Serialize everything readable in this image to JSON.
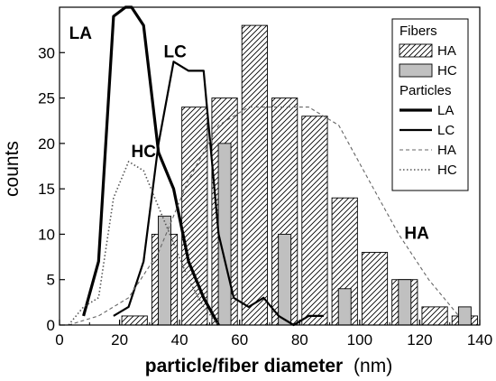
{
  "chart_data": {
    "type": "bar",
    "xlabel": "particle/fiber diameter",
    "xlabel_unit": "(nm)",
    "ylabel": "counts",
    "xlim": [
      0,
      140
    ],
    "ylim": [
      0,
      35
    ],
    "xticks": [
      0,
      20,
      40,
      60,
      80,
      100,
      120,
      140
    ],
    "yticks": [
      0,
      5,
      10,
      15,
      20,
      25,
      30
    ],
    "grid": false,
    "legend_position": "top-right",
    "legend": {
      "group1_title": "Fibers",
      "group2_title": "Particles"
    },
    "bar_series": [
      {
        "name": "HA",
        "group": "Fibers",
        "fill": "hatched",
        "x": [
          25,
          35,
          45,
          55,
          65,
          75,
          85,
          95,
          105,
          115,
          125,
          135
        ],
        "values": [
          1,
          10,
          24,
          25,
          33,
          25,
          23,
          14,
          8,
          5,
          2,
          1
        ]
      },
      {
        "name": "HC",
        "group": "Fibers",
        "fill": "#c0c0c0",
        "x": [
          35,
          55,
          75,
          95,
          115,
          135
        ],
        "values": [
          12,
          20,
          10,
          4,
          5,
          2
        ]
      }
    ],
    "line_series": [
      {
        "name": "LA",
        "group": "Particles",
        "style": "thick-solid",
        "x": [
          8,
          13,
          18,
          22,
          24,
          28,
          33,
          38,
          43,
          48,
          53
        ],
        "y": [
          1,
          7,
          34,
          35,
          35,
          33,
          19,
          15,
          7,
          3,
          0
        ]
      },
      {
        "name": "LC",
        "group": "Particles",
        "style": "solid",
        "x": [
          18,
          23,
          28,
          33,
          38,
          43,
          48,
          53,
          58,
          63,
          68,
          73,
          78,
          83,
          88
        ],
        "y": [
          1,
          2,
          7,
          20,
          29,
          28,
          28,
          10,
          3,
          2,
          3,
          1,
          0,
          1,
          1
        ]
      },
      {
        "name": "HA",
        "group": "Particles",
        "style": "dashed",
        "x": [
          3,
          13,
          23,
          33,
          43,
          53,
          63,
          73,
          83,
          93,
          103,
          113,
          123,
          133
        ],
        "y": [
          0,
          1,
          3,
          8,
          16,
          22,
          24,
          24,
          24,
          22,
          16,
          10,
          5,
          1
        ]
      },
      {
        "name": "HC",
        "group": "Particles",
        "style": "dotted",
        "x": [
          3,
          8,
          13,
          18,
          23,
          28,
          33,
          38,
          43,
          48,
          53
        ],
        "y": [
          0,
          2,
          3,
          14,
          18,
          17,
          13,
          9,
          5,
          2,
          0
        ]
      }
    ],
    "annotations": [
      {
        "text": "LA",
        "x": 7,
        "y": 31.5
      },
      {
        "text": "LC",
        "x": 38.5,
        "y": 29.5
      },
      {
        "text": "HC",
        "x": 28,
        "y": 18.5
      },
      {
        "text": "HA",
        "x": 119,
        "y": 9.5
      }
    ]
  }
}
